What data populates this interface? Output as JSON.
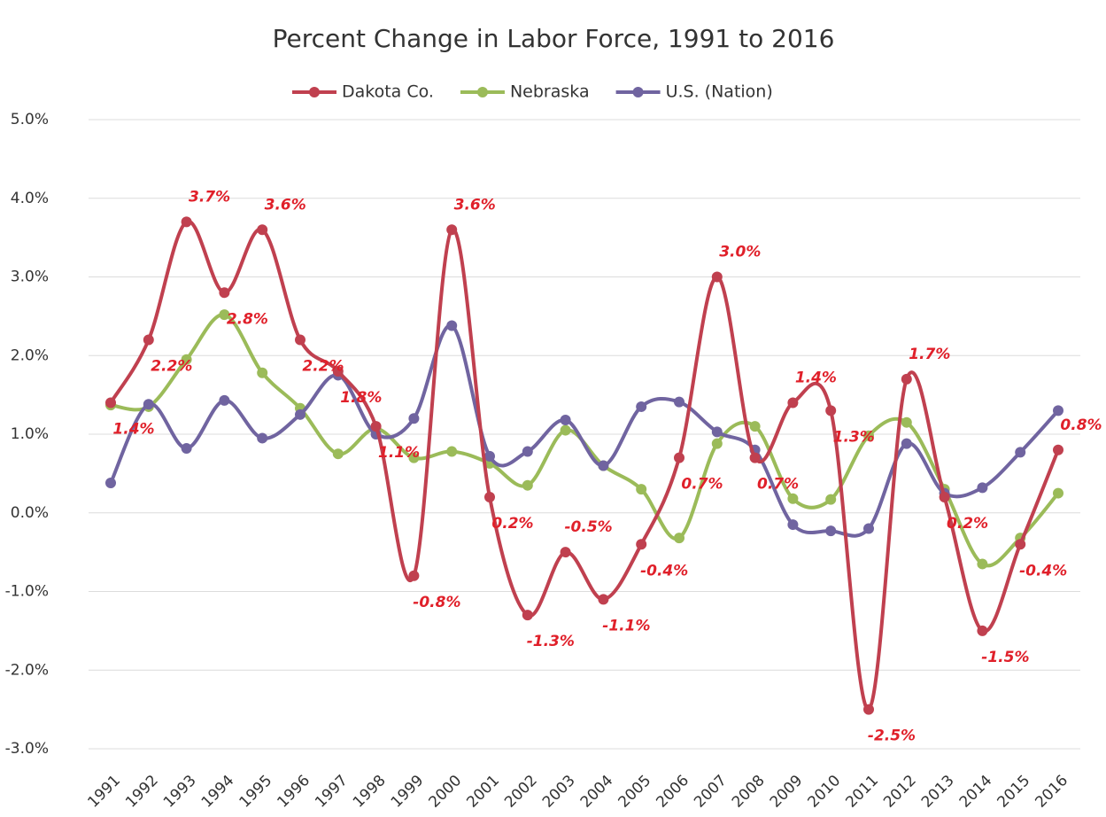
{
  "chart_data": {
    "type": "line",
    "title": "Percent Change in Labor Force, 1991 to 2016",
    "categories": [
      "1991",
      "1992",
      "1993",
      "1994",
      "1995",
      "1996",
      "1997",
      "1998",
      "1999",
      "2000",
      "2001",
      "2002",
      "2003",
      "2004",
      "2005",
      "2006",
      "2007",
      "2008",
      "2009",
      "2010",
      "2011",
      "2012",
      "2013",
      "2014",
      "2015",
      "2016"
    ],
    "series": [
      {
        "name": "Dakota Co.",
        "color": "#c0404f",
        "values": [
          1.4,
          2.2,
          3.7,
          2.8,
          3.6,
          2.2,
          1.8,
          1.1,
          -0.8,
          3.6,
          0.2,
          -1.3,
          -0.5,
          -1.1,
          -0.4,
          0.7,
          3.0,
          0.7,
          1.4,
          1.3,
          -2.5,
          1.7,
          0.2,
          -1.5,
          -0.4,
          0.8
        ],
        "value_labels": [
          "1.4%",
          "2.2%",
          "3.7%",
          "2.8%",
          "3.6%",
          "2.2%",
          "1.8%",
          "1.1%",
          "-0.8%",
          "3.6%",
          "0.2%",
          "-1.3%",
          "-0.5%",
          "-1.1%",
          "-0.4%",
          "0.7%",
          "3.0%",
          "0.7%",
          "1.4%",
          "1.3%",
          "-2.5%",
          "1.7%",
          "0.2%",
          "-1.5%",
          "-0.4%",
          "0.8%"
        ]
      },
      {
        "name": "Nebraska",
        "color": "#9bbb59",
        "values": [
          1.37,
          1.35,
          1.95,
          2.52,
          1.78,
          1.33,
          0.75,
          1.07,
          0.7,
          0.78,
          0.63,
          0.35,
          1.05,
          0.6,
          0.3,
          -0.32,
          0.88,
          1.1,
          0.18,
          0.17,
          0.98,
          1.15,
          0.3,
          -0.65,
          -0.32,
          0.25
        ]
      },
      {
        "name": "U.S. (Nation)",
        "color": "#7064a0",
        "values": [
          0.38,
          1.38,
          0.82,
          1.43,
          0.95,
          1.25,
          1.75,
          1.0,
          1.2,
          2.38,
          0.72,
          0.78,
          1.18,
          0.6,
          1.35,
          1.41,
          1.03,
          0.8,
          -0.15,
          -0.23,
          -0.2,
          0.88,
          0.25,
          0.32,
          0.77,
          1.3
        ]
      }
    ],
    "ylim": [
      -3,
      5
    ],
    "yticks": [
      {
        "value": -3,
        "label": "-3.0%"
      },
      {
        "value": -2,
        "label": "-2.0%"
      },
      {
        "value": -1,
        "label": "-1.0%"
      },
      {
        "value": 0,
        "label": "0.0%"
      },
      {
        "value": 1,
        "label": "1.0%"
      },
      {
        "value": 2,
        "label": "2.0%"
      },
      {
        "value": 3,
        "label": "3.0%"
      },
      {
        "value": 4,
        "label": "4.0%"
      },
      {
        "value": 5,
        "label": "5.0%"
      }
    ],
    "grid": true,
    "legend": "top"
  }
}
